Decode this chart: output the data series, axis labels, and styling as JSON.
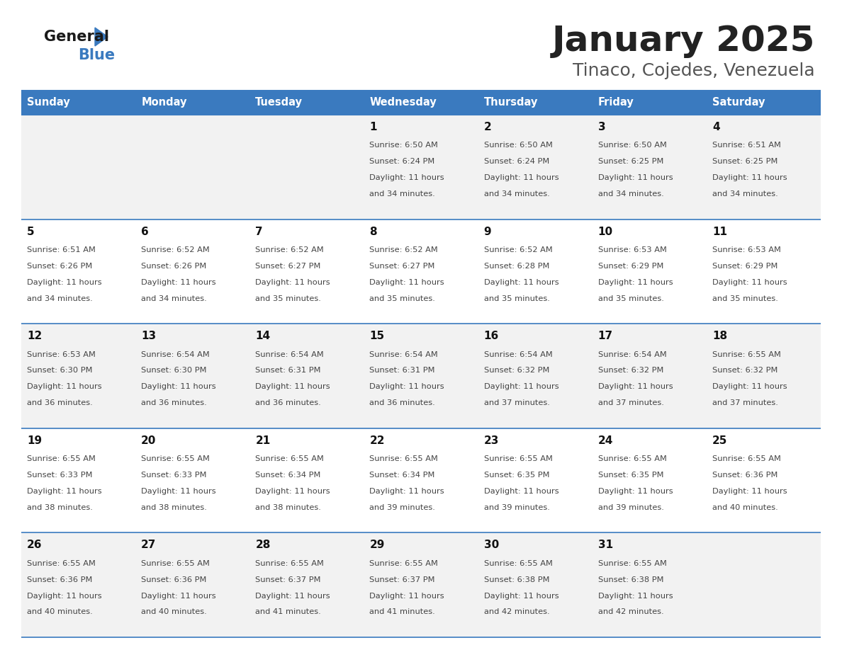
{
  "title": "January 2025",
  "subtitle": "Tinaco, Cojedes, Venezuela",
  "days_of_week": [
    "Sunday",
    "Monday",
    "Tuesday",
    "Wednesday",
    "Thursday",
    "Friday",
    "Saturday"
  ],
  "header_bg": "#3a7abf",
  "header_text": "#ffffff",
  "row_bg_odd": "#f2f2f2",
  "row_bg_even": "#ffffff",
  "cell_border": "#3a7abf",
  "day_number_color": "#000000",
  "cell_text_color": "#444444",
  "title_color": "#222222",
  "subtitle_color": "#555555",
  "calendar_data": [
    [
      {
        "day": null,
        "sunrise": null,
        "sunset": null,
        "daylight": null
      },
      {
        "day": null,
        "sunrise": null,
        "sunset": null,
        "daylight": null
      },
      {
        "day": null,
        "sunrise": null,
        "sunset": null,
        "daylight": null
      },
      {
        "day": 1,
        "sunrise": "6:50 AM",
        "sunset": "6:24 PM",
        "daylight": "11 hours and 34 minutes."
      },
      {
        "day": 2,
        "sunrise": "6:50 AM",
        "sunset": "6:24 PM",
        "daylight": "11 hours and 34 minutes."
      },
      {
        "day": 3,
        "sunrise": "6:50 AM",
        "sunset": "6:25 PM",
        "daylight": "11 hours and 34 minutes."
      },
      {
        "day": 4,
        "sunrise": "6:51 AM",
        "sunset": "6:25 PM",
        "daylight": "11 hours and 34 minutes."
      }
    ],
    [
      {
        "day": 5,
        "sunrise": "6:51 AM",
        "sunset": "6:26 PM",
        "daylight": "11 hours and 34 minutes."
      },
      {
        "day": 6,
        "sunrise": "6:52 AM",
        "sunset": "6:26 PM",
        "daylight": "11 hours and 34 minutes."
      },
      {
        "day": 7,
        "sunrise": "6:52 AM",
        "sunset": "6:27 PM",
        "daylight": "11 hours and 35 minutes."
      },
      {
        "day": 8,
        "sunrise": "6:52 AM",
        "sunset": "6:27 PM",
        "daylight": "11 hours and 35 minutes."
      },
      {
        "day": 9,
        "sunrise": "6:52 AM",
        "sunset": "6:28 PM",
        "daylight": "11 hours and 35 minutes."
      },
      {
        "day": 10,
        "sunrise": "6:53 AM",
        "sunset": "6:29 PM",
        "daylight": "11 hours and 35 minutes."
      },
      {
        "day": 11,
        "sunrise": "6:53 AM",
        "sunset": "6:29 PM",
        "daylight": "11 hours and 35 minutes."
      }
    ],
    [
      {
        "day": 12,
        "sunrise": "6:53 AM",
        "sunset": "6:30 PM",
        "daylight": "11 hours and 36 minutes."
      },
      {
        "day": 13,
        "sunrise": "6:54 AM",
        "sunset": "6:30 PM",
        "daylight": "11 hours and 36 minutes."
      },
      {
        "day": 14,
        "sunrise": "6:54 AM",
        "sunset": "6:31 PM",
        "daylight": "11 hours and 36 minutes."
      },
      {
        "day": 15,
        "sunrise": "6:54 AM",
        "sunset": "6:31 PM",
        "daylight": "11 hours and 36 minutes."
      },
      {
        "day": 16,
        "sunrise": "6:54 AM",
        "sunset": "6:32 PM",
        "daylight": "11 hours and 37 minutes."
      },
      {
        "day": 17,
        "sunrise": "6:54 AM",
        "sunset": "6:32 PM",
        "daylight": "11 hours and 37 minutes."
      },
      {
        "day": 18,
        "sunrise": "6:55 AM",
        "sunset": "6:32 PM",
        "daylight": "11 hours and 37 minutes."
      }
    ],
    [
      {
        "day": 19,
        "sunrise": "6:55 AM",
        "sunset": "6:33 PM",
        "daylight": "11 hours and 38 minutes."
      },
      {
        "day": 20,
        "sunrise": "6:55 AM",
        "sunset": "6:33 PM",
        "daylight": "11 hours and 38 minutes."
      },
      {
        "day": 21,
        "sunrise": "6:55 AM",
        "sunset": "6:34 PM",
        "daylight": "11 hours and 38 minutes."
      },
      {
        "day": 22,
        "sunrise": "6:55 AM",
        "sunset": "6:34 PM",
        "daylight": "11 hours and 39 minutes."
      },
      {
        "day": 23,
        "sunrise": "6:55 AM",
        "sunset": "6:35 PM",
        "daylight": "11 hours and 39 minutes."
      },
      {
        "day": 24,
        "sunrise": "6:55 AM",
        "sunset": "6:35 PM",
        "daylight": "11 hours and 39 minutes."
      },
      {
        "day": 25,
        "sunrise": "6:55 AM",
        "sunset": "6:36 PM",
        "daylight": "11 hours and 40 minutes."
      }
    ],
    [
      {
        "day": 26,
        "sunrise": "6:55 AM",
        "sunset": "6:36 PM",
        "daylight": "11 hours and 40 minutes."
      },
      {
        "day": 27,
        "sunrise": "6:55 AM",
        "sunset": "6:36 PM",
        "daylight": "11 hours and 40 minutes."
      },
      {
        "day": 28,
        "sunrise": "6:55 AM",
        "sunset": "6:37 PM",
        "daylight": "11 hours and 41 minutes."
      },
      {
        "day": 29,
        "sunrise": "6:55 AM",
        "sunset": "6:37 PM",
        "daylight": "11 hours and 41 minutes."
      },
      {
        "day": 30,
        "sunrise": "6:55 AM",
        "sunset": "6:38 PM",
        "daylight": "11 hours and 42 minutes."
      },
      {
        "day": 31,
        "sunrise": "6:55 AM",
        "sunset": "6:38 PM",
        "daylight": "11 hours and 42 minutes."
      },
      {
        "day": null,
        "sunrise": null,
        "sunset": null,
        "daylight": null
      }
    ]
  ]
}
